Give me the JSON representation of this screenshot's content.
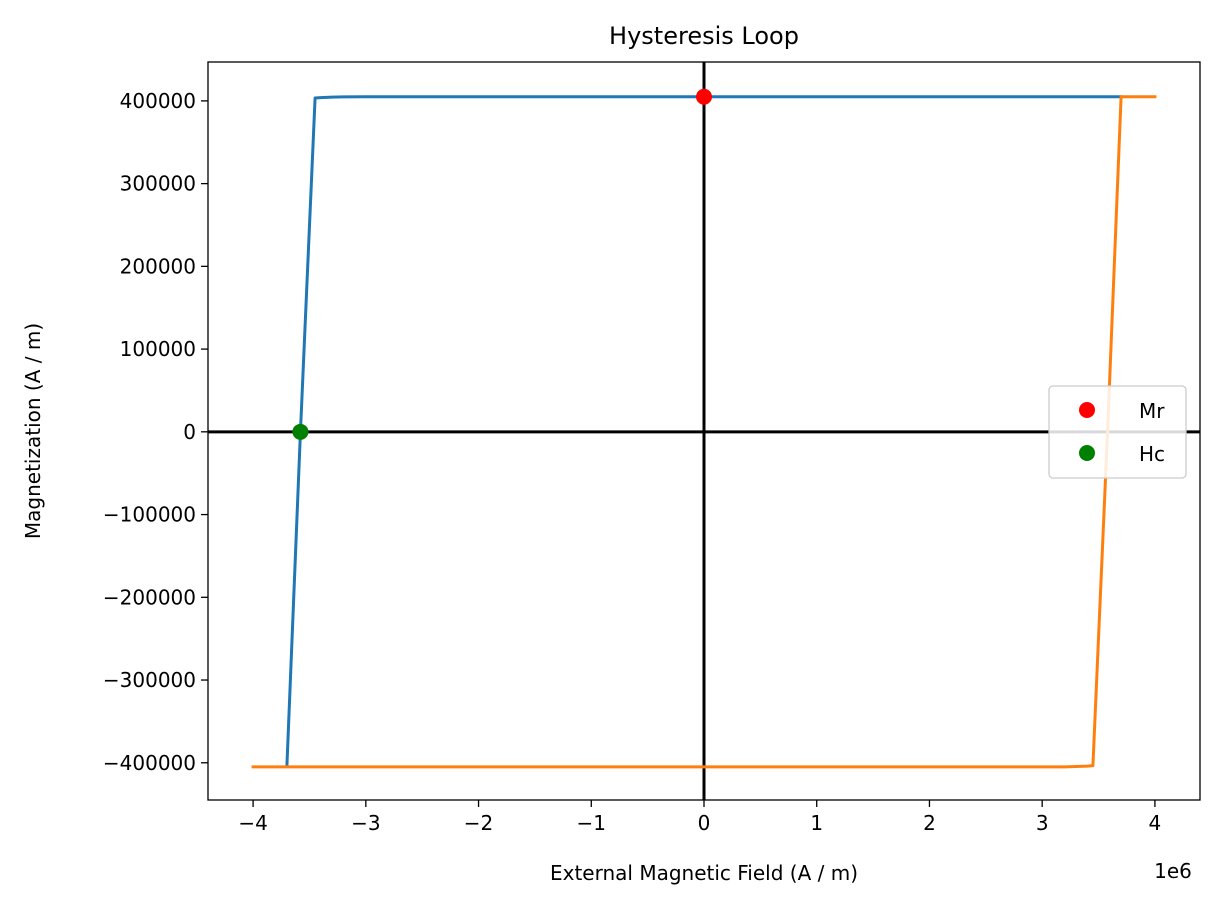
{
  "chart_data": {
    "type": "line",
    "title": "Hysteresis Loop",
    "xlabel": "External Magnetic Field (A / m)",
    "ylabel": "Magnetization (A / m)",
    "x_offset_label": "1e6",
    "xlim": [
      -4.4,
      4.4
    ],
    "ylim": [
      -445000,
      447000
    ],
    "xticks": [
      -4,
      -3,
      -2,
      -1,
      0,
      1,
      2,
      3,
      4
    ],
    "xtick_labels": [
      "−4",
      "−3",
      "−2",
      "−1",
      "0",
      "1",
      "2",
      "3",
      "4"
    ],
    "yticks": [
      -400000,
      -300000,
      -200000,
      -100000,
      0,
      100000,
      200000,
      300000,
      400000
    ],
    "ytick_labels": [
      "−400000",
      "−300000",
      "−200000",
      "−100000",
      "0",
      "100000",
      "200000",
      "300000",
      "400000"
    ],
    "grid": false,
    "legend_position": "center-right",
    "series": [
      {
        "color": "#1f77b4",
        "x": [
          3.7,
          3.0,
          2.0,
          1.0,
          0.0,
          -1.0,
          -2.0,
          -3.0,
          -3.2,
          -3.3,
          -3.4,
          -3.45,
          -3.58,
          -3.7
        ],
        "y": [
          405000,
          405000,
          405000,
          405000,
          405000,
          405000,
          405000,
          405000,
          404900,
          404500,
          404000,
          403500,
          0,
          -403500
        ]
      },
      {
        "color": "#ff7f0e",
        "x": [
          -4.0,
          -3.0,
          -2.0,
          -1.0,
          0.0,
          1.0,
          2.0,
          3.0,
          3.2,
          3.3,
          3.4,
          3.45,
          3.58,
          3.7,
          4.0
        ],
        "y": [
          -405000,
          -405000,
          -405000,
          -405000,
          -405000,
          -405000,
          -405000,
          -405000,
          -404900,
          -404500,
          -404000,
          -403500,
          0,
          405000,
          405000
        ]
      }
    ],
    "points": [
      {
        "name": "Mr",
        "color": "#ff0000",
        "x": 0.0,
        "y": 405000
      },
      {
        "name": "Hc",
        "color": "#008000",
        "x": -3.58,
        "y": 0
      }
    ],
    "reference_lines": [
      {
        "orientation": "horizontal",
        "value": 0,
        "color": "#000000"
      },
      {
        "orientation": "vertical",
        "value": 0,
        "color": "#000000"
      }
    ],
    "legend": [
      {
        "label": "Mr",
        "color": "#ff0000"
      },
      {
        "label": "Hc",
        "color": "#008000"
      }
    ]
  }
}
